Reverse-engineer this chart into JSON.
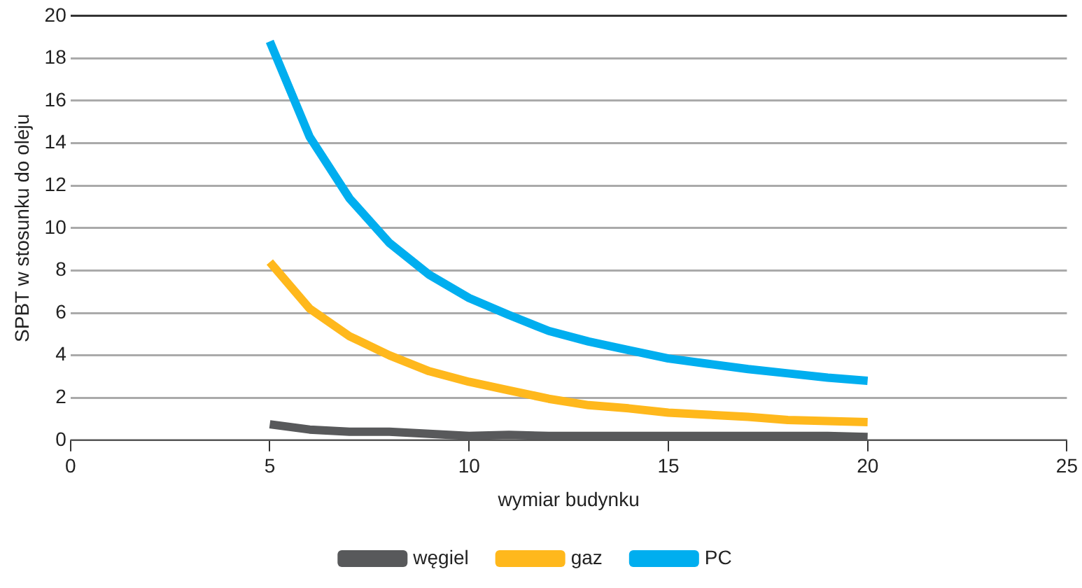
{
  "chart_data": {
    "type": "line",
    "xlabel": "wymiar budynku",
    "ylabel": "SPBT w stosunku do oleju",
    "x": [
      5,
      6,
      7,
      8,
      9,
      10,
      11,
      12,
      13,
      14,
      15,
      16,
      17,
      18,
      19,
      20
    ],
    "series": [
      {
        "name": "węgiel",
        "color": "#58595b",
        "values": [
          0.75,
          0.5,
          0.4,
          0.4,
          0.3,
          0.2,
          0.25,
          0.2,
          0.2,
          0.2,
          0.2,
          0.2,
          0.2,
          0.2,
          0.2,
          0.15
        ]
      },
      {
        "name": "gaz",
        "color": "#ffb81c",
        "values": [
          8.4,
          6.2,
          4.9,
          4.0,
          3.25,
          2.75,
          2.35,
          1.95,
          1.65,
          1.5,
          1.3,
          1.2,
          1.1,
          0.95,
          0.9,
          0.85
        ]
      },
      {
        "name": "PC",
        "color": "#00aeef",
        "values": [
          18.8,
          14.3,
          11.4,
          9.3,
          7.8,
          6.7,
          5.9,
          5.15,
          4.65,
          4.25,
          3.85,
          3.6,
          3.35,
          3.15,
          2.95,
          2.8
        ]
      }
    ],
    "xlim": [
      0,
      25
    ],
    "xticks": [
      0,
      5,
      10,
      15,
      20,
      25
    ],
    "ylim": [
      0,
      20
    ],
    "yticks": [
      0,
      2,
      4,
      6,
      8,
      10,
      12,
      14,
      16,
      18,
      20
    ],
    "grid": "y",
    "legend": "bottom",
    "marker": "none",
    "line_style": "solid"
  }
}
